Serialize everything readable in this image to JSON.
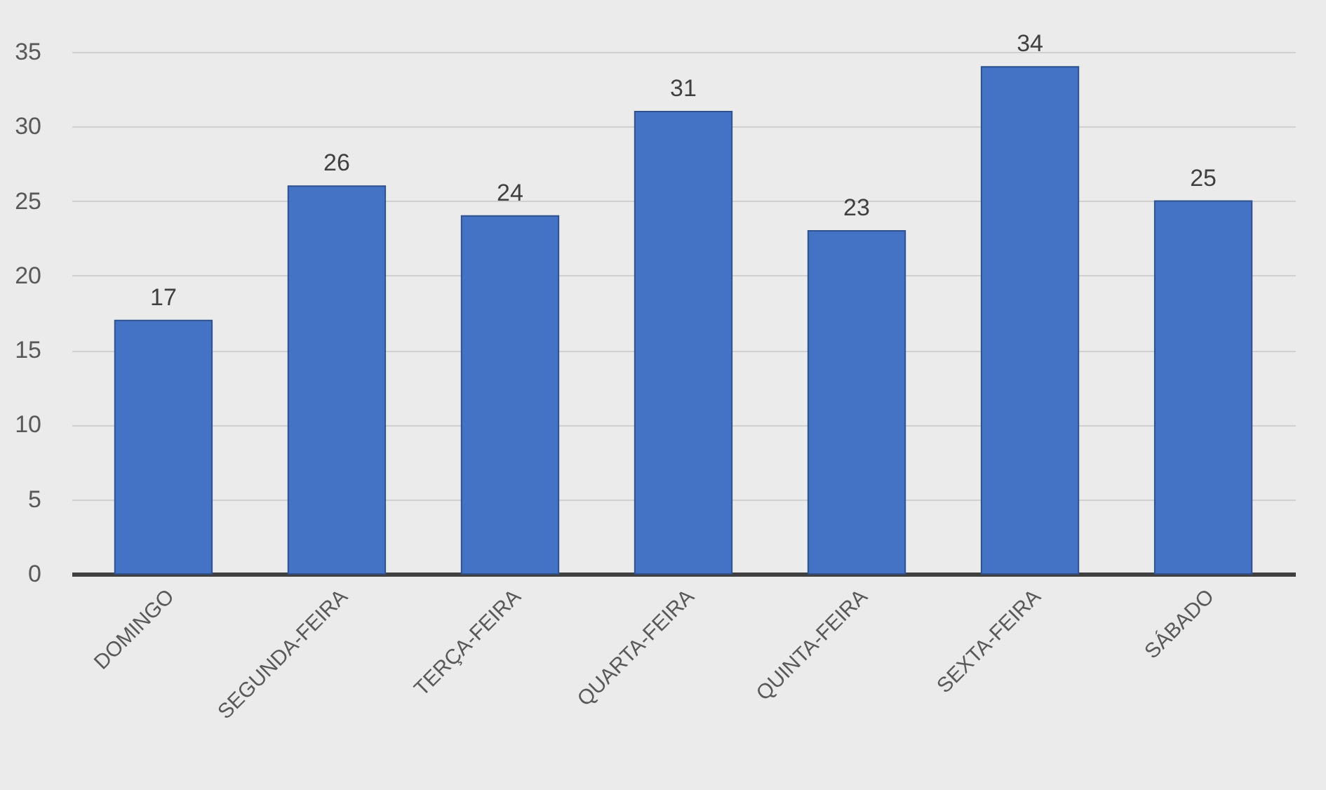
{
  "chart_data": {
    "type": "bar",
    "categories": [
      "DOMINGO",
      "SEGUNDA-FEIRA",
      "TERÇA-FEIRA",
      "QUARTA-FEIRA",
      "QUINTA-FEIRA",
      "SEXTA-FEIRA",
      "SÁBADO"
    ],
    "values": [
      17,
      26,
      24,
      31,
      23,
      34,
      25
    ],
    "color": "#4472c4",
    "ylim": [
      0,
      35
    ],
    "yticks": [
      0,
      5,
      10,
      15,
      20,
      25,
      30,
      35
    ],
    "grid": "y",
    "data_labels": true
  }
}
